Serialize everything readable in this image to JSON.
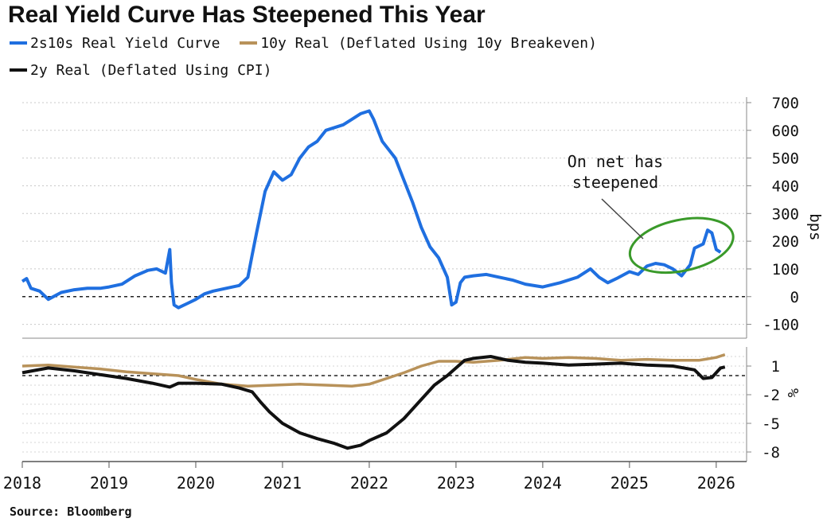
{
  "header": {
    "title": "Real Yield Curve Has Steepened This Year",
    "source": "Source: Bloomberg"
  },
  "chart_data": [
    {
      "type": "line",
      "panel": "top",
      "ylabel": "bps",
      "ylim": [
        -150,
        720
      ],
      "yticks": [
        700,
        600,
        500,
        400,
        300,
        200,
        100,
        0,
        -100
      ],
      "grid": true,
      "reference_line": 0,
      "annotation": {
        "lines": [
          "On net has",
          "steepened"
        ]
      },
      "series": [
        {
          "name": "2s10s Real Yield Curve",
          "color": "#1f6fe0",
          "x": [
            2018.0,
            2018.05,
            2018.1,
            2018.2,
            2018.3,
            2018.45,
            2018.6,
            2018.75,
            2018.9,
            2019.0,
            2019.15,
            2019.3,
            2019.45,
            2019.55,
            2019.65,
            2019.7,
            2019.72,
            2019.75,
            2019.8,
            2019.9,
            2020.0,
            2020.1,
            2020.2,
            2020.35,
            2020.5,
            2020.6,
            2020.65,
            2020.7,
            2020.8,
            2020.9,
            2021.0,
            2021.1,
            2021.2,
            2021.3,
            2021.4,
            2021.5,
            2021.6,
            2021.7,
            2021.8,
            2021.9,
            2022.0,
            2022.05,
            2022.1,
            2022.15,
            2022.3,
            2022.4,
            2022.5,
            2022.6,
            2022.7,
            2022.8,
            2022.9,
            2022.95,
            2023.0,
            2023.05,
            2023.1,
            2023.2,
            2023.35,
            2023.5,
            2023.65,
            2023.8,
            2024.0,
            2024.2,
            2024.4,
            2024.55,
            2024.65,
            2024.75,
            2024.85,
            2025.0,
            2025.1,
            2025.2,
            2025.3,
            2025.4,
            2025.5,
            2025.6,
            2025.7,
            2025.75,
            2025.85,
            2025.9,
            2025.95,
            2026.0,
            2026.05
          ],
          "values": [
            55,
            65,
            30,
            20,
            -10,
            15,
            25,
            30,
            30,
            35,
            45,
            75,
            95,
            100,
            85,
            170,
            50,
            -30,
            -40,
            -25,
            -10,
            10,
            20,
            30,
            40,
            70,
            150,
            230,
            380,
            450,
            420,
            440,
            500,
            540,
            560,
            600,
            610,
            620,
            640,
            660,
            670,
            640,
            600,
            560,
            500,
            420,
            340,
            250,
            180,
            140,
            70,
            -30,
            -20,
            50,
            70,
            75,
            80,
            70,
            60,
            45,
            35,
            50,
            70,
            100,
            70,
            50,
            65,
            90,
            80,
            110,
            120,
            115,
            100,
            75,
            115,
            175,
            190,
            240,
            230,
            170,
            160
          ]
        }
      ]
    },
    {
      "type": "line",
      "panel": "bottom",
      "ylabel": "%",
      "ylim": [
        -9,
        3
      ],
      "yticks": [
        1,
        -2,
        -5,
        -8
      ],
      "grid": true,
      "reference_line": 0,
      "xticks": [
        "2018",
        "2019",
        "2020",
        "2021",
        "2022",
        "2023",
        "2024",
        "2025",
        "2026"
      ],
      "series": [
        {
          "name": "10y Real (Deflated Using 10y Breakeven)",
          "color": "#b8925a",
          "x": [
            2018.0,
            2018.3,
            2018.6,
            2018.9,
            2019.2,
            2019.5,
            2019.8,
            2020.0,
            2020.3,
            2020.6,
            2020.9,
            2021.2,
            2021.5,
            2021.8,
            2022.0,
            2022.2,
            2022.4,
            2022.6,
            2022.8,
            2023.0,
            2023.2,
            2023.5,
            2023.8,
            2024.0,
            2024.3,
            2024.6,
            2024.9,
            2025.2,
            2025.5,
            2025.8,
            2026.0,
            2026.1
          ],
          "values": [
            1.0,
            1.1,
            0.9,
            0.7,
            0.4,
            0.2,
            0.0,
            -0.4,
            -0.9,
            -1.1,
            -1.0,
            -0.9,
            -1.0,
            -1.1,
            -0.9,
            -0.3,
            0.3,
            1.0,
            1.5,
            1.5,
            1.4,
            1.6,
            1.9,
            1.8,
            1.9,
            1.8,
            1.6,
            1.7,
            1.6,
            1.6,
            1.9,
            2.2
          ]
        },
        {
          "name": "2y Real (Deflated Using CPI)",
          "color": "#111111",
          "x": [
            2018.0,
            2018.3,
            2018.6,
            2018.9,
            2019.2,
            2019.5,
            2019.7,
            2019.8,
            2020.0,
            2020.3,
            2020.5,
            2020.65,
            2020.75,
            2020.85,
            2021.0,
            2021.2,
            2021.4,
            2021.6,
            2021.75,
            2021.9,
            2022.0,
            2022.2,
            2022.4,
            2022.6,
            2022.75,
            2022.9,
            2023.0,
            2023.1,
            2023.2,
            2023.4,
            2023.6,
            2023.8,
            2024.0,
            2024.3,
            2024.6,
            2024.9,
            2025.2,
            2025.5,
            2025.75,
            2025.85,
            2025.95,
            2026.05,
            2026.1
          ],
          "values": [
            0.3,
            0.8,
            0.5,
            0.1,
            -0.3,
            -0.8,
            -1.2,
            -0.8,
            -0.8,
            -0.9,
            -1.3,
            -1.7,
            -2.8,
            -3.8,
            -5.0,
            -6.0,
            -6.6,
            -7.1,
            -7.6,
            -7.3,
            -6.8,
            -6.0,
            -4.5,
            -2.5,
            -1.0,
            0.0,
            0.8,
            1.6,
            1.8,
            2.0,
            1.6,
            1.4,
            1.3,
            1.1,
            1.2,
            1.3,
            1.1,
            1.0,
            0.6,
            -0.3,
            -0.2,
            0.8,
            0.9
          ]
        }
      ]
    }
  ]
}
